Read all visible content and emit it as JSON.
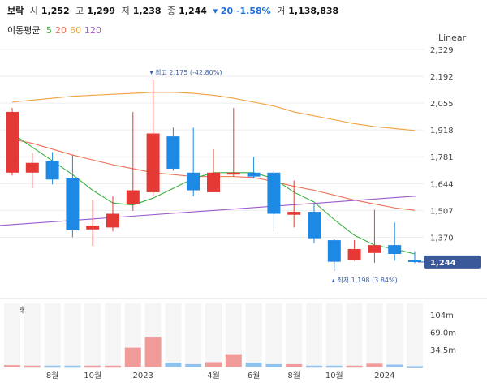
{
  "header": {
    "name": "보락",
    "open_label": "시",
    "open": "1,252",
    "high_label": "고",
    "high": "1,299",
    "low_label": "저",
    "low": "1,238",
    "close_label": "종",
    "close": "1,244",
    "change": "▾ 20 -1.58%",
    "volume_label": "거",
    "volume": "1,138,838"
  },
  "ma_legend": {
    "title": "이동평균",
    "items": [
      {
        "label": "5",
        "color": "#3cb043"
      },
      {
        "label": "20",
        "color": "#ee7055"
      },
      {
        "label": "60",
        "color": "#f0a040"
      },
      {
        "label": "120",
        "color": "#9b59d0"
      }
    ]
  },
  "scale_label": "Linear",
  "colors": {
    "up": "#e53935",
    "down": "#1e88e5",
    "grid": "#eeeeee"
  },
  "chart_data": {
    "type": "candlestick",
    "y_ticks": [
      "2,329",
      "2,192",
      "2,055",
      "1,918",
      "1,781",
      "1,644",
      "1,507",
      "1,370"
    ],
    "y_tick_values": [
      2329,
      2192,
      2055,
      1918,
      1781,
      1644,
      1507,
      1370
    ],
    "ylim": [
      1140,
      2395
    ],
    "last_price": "1,244",
    "last_price_value": 1244,
    "annotations": {
      "high": {
        "label": "▾ 최고 2,175 (-42.80%)",
        "value": 2175,
        "index": 7
      },
      "low": {
        "label": "▴ 최저 1,198 (3.84%)",
        "value": 1198,
        "index": 16
      }
    },
    "x_labels": [
      {
        "label": "8월",
        "index": 2
      },
      {
        "label": "10월",
        "index": 4
      },
      {
        "label": "2023",
        "index": 6.5
      },
      {
        "label": "4월",
        "index": 10
      },
      {
        "label": "6월",
        "index": 12
      },
      {
        "label": "8월",
        "index": 14
      },
      {
        "label": "10월",
        "index": 16
      },
      {
        "label": "2024",
        "index": 18.5
      }
    ],
    "candles": [
      {
        "o": 1700,
        "c": 2010,
        "h": 2030,
        "l": 1685
      },
      {
        "o": 1700,
        "c": 1750,
        "h": 1800,
        "l": 1620
      },
      {
        "o": 1760,
        "c": 1665,
        "h": 1805,
        "l": 1640
      },
      {
        "o": 1670,
        "c": 1405,
        "h": 1790,
        "l": 1370
      },
      {
        "o": 1410,
        "c": 1430,
        "h": 1560,
        "l": 1325
      },
      {
        "o": 1420,
        "c": 1490,
        "h": 1580,
        "l": 1400
      },
      {
        "o": 1540,
        "c": 1610,
        "h": 2010,
        "l": 1505
      },
      {
        "o": 1600,
        "c": 1900,
        "h": 2175,
        "l": 1580
      },
      {
        "o": 1885,
        "c": 1720,
        "h": 1930,
        "l": 1710
      },
      {
        "o": 1700,
        "c": 1610,
        "h": 1930,
        "l": 1580
      },
      {
        "o": 1600,
        "c": 1700,
        "h": 1820,
        "l": 1600
      },
      {
        "o": 1690,
        "c": 1700,
        "h": 2030,
        "l": 1680
      },
      {
        "o": 1700,
        "c": 1680,
        "h": 1780,
        "l": 1670
      },
      {
        "o": 1700,
        "c": 1490,
        "h": 1710,
        "l": 1400
      },
      {
        "o": 1485,
        "c": 1500,
        "h": 1660,
        "l": 1420
      },
      {
        "o": 1500,
        "c": 1365,
        "h": 1540,
        "l": 1340
      },
      {
        "o": 1355,
        "c": 1245,
        "h": 1360,
        "l": 1198
      },
      {
        "o": 1255,
        "c": 1310,
        "h": 1355,
        "l": 1250
      },
      {
        "o": 1290,
        "c": 1330,
        "h": 1510,
        "l": 1240
      },
      {
        "o": 1330,
        "c": 1285,
        "h": 1445,
        "l": 1250
      },
      {
        "o": 1252,
        "c": 1244,
        "h": 1299,
        "l": 1238
      }
    ],
    "ma5": [
      1900,
      1830,
      1760,
      1690,
      1610,
      1545,
      1535,
      1570,
      1620,
      1670,
      1700,
      1700,
      1700,
      1670,
      1600,
      1550,
      1460,
      1380,
      1330,
      1310,
      1285
    ],
    "ma20": [
      1870,
      1850,
      1820,
      1790,
      1765,
      1740,
      1720,
      1700,
      1690,
      1680,
      1680,
      1680,
      1675,
      1655,
      1630,
      1610,
      1585,
      1560,
      1540,
      1520,
      1508
    ],
    "ma60": [
      2060,
      2070,
      2080,
      2090,
      2095,
      2100,
      2105,
      2110,
      2110,
      2105,
      2095,
      2080,
      2060,
      2040,
      2010,
      1990,
      1970,
      1950,
      1935,
      1925,
      1915
    ],
    "ma120_start": 1430,
    "ma120_end": 1580,
    "volume": {
      "title": "거래량",
      "y_ticks": [
        "104m",
        "69.0m",
        "34.5m"
      ],
      "y_tick_values": [
        104,
        69,
        34.5
      ],
      "ymax": 130,
      "values": [
        3,
        2,
        2,
        2,
        2,
        2,
        38,
        60,
        8,
        5,
        9,
        25,
        8,
        5,
        5,
        2,
        2,
        2,
        6,
        4,
        1
      ]
    }
  }
}
